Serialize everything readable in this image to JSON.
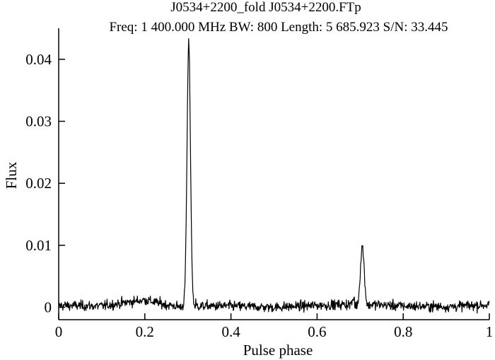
{
  "chart_data": {
    "type": "line",
    "title": "J0534+2200_fold J0534+2200.FTp",
    "subtitle": "Freq: 1 400.000 MHz  BW: 800  Length: 5 685.923  S/N: 33.445",
    "xlabel": "Pulse phase",
    "ylabel": "Flux",
    "xlim": [
      0,
      1
    ],
    "ylim": [
      -0.002,
      0.045
    ],
    "xticks": [
      0,
      0.2,
      0.4,
      0.6,
      0.8,
      1
    ],
    "xtick_labels": [
      "0",
      "0.2",
      "0.4",
      "0.6",
      "0.8",
      "1"
    ],
    "yticks": [
      0,
      0.01,
      0.02,
      0.03,
      0.04
    ],
    "ytick_labels": [
      "0",
      "0.01",
      "0.02",
      "0.03",
      "0.04"
    ],
    "grid": false,
    "series": [
      {
        "line_color": "#000000",
        "noise_std": 0.0004,
        "peaks": [
          {
            "phase": 0.302,
            "height": 0.0423,
            "width": 0.004
          },
          {
            "phase": 0.705,
            "height": 0.0096,
            "width": 0.0045
          }
        ],
        "x": [
          0.0,
          0.1,
          0.2,
          0.25,
          0.29,
          0.296,
          0.3,
          0.302,
          0.305,
          0.31,
          0.32,
          0.4,
          0.5,
          0.6,
          0.68,
          0.695,
          0.7,
          0.705,
          0.71,
          0.72,
          0.8,
          0.9,
          1.0
        ],
        "y": [
          0.0003,
          0.0002,
          0.0012,
          0.0004,
          0.0,
          0.0033,
          0.032,
          0.0423,
          0.035,
          0.003,
          0.0002,
          0.0002,
          0.0,
          0.0003,
          0.0005,
          0.0032,
          0.0086,
          0.0096,
          0.006,
          0.0005,
          0.0002,
          0.0001,
          0.0004
        ]
      }
    ]
  }
}
